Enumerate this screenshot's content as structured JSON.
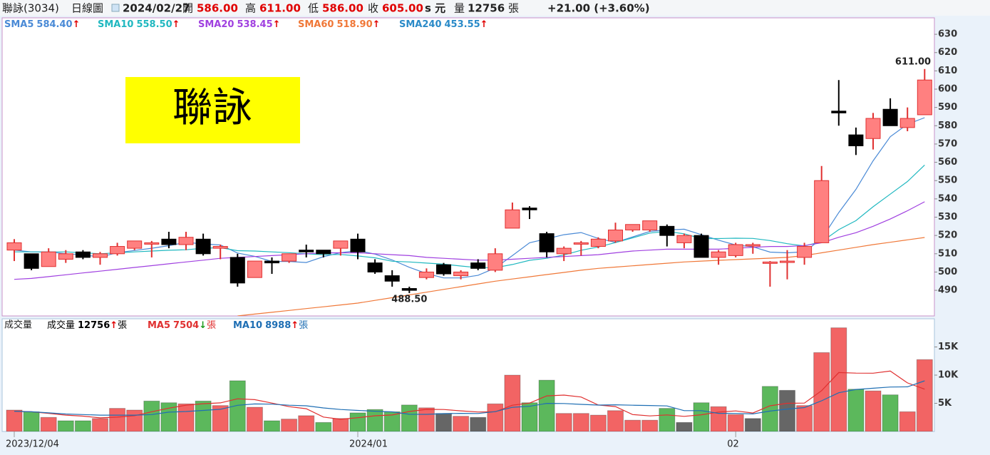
{
  "header": {
    "name": "聯詠(3034)",
    "period": "日線圖",
    "date": "2024/02/27",
    "fields": [
      {
        "label": "開",
        "value": "586.00"
      },
      {
        "label": "高",
        "value": "611.00"
      },
      {
        "label": "低",
        "value": "586.00"
      },
      {
        "label": "收",
        "value": "605.00"
      }
    ],
    "unit": "s 元",
    "volume_label": "量",
    "volume": "12756",
    "volume_unit": "張",
    "change": "+21.00 (+3.60%)"
  },
  "chart_data": [
    {
      "type": "candlestick",
      "title": "聯詠",
      "title_background": "#ffff00",
      "open": [
        512,
        510,
        503,
        507,
        511,
        508,
        510,
        513,
        516,
        518,
        515,
        518,
        513,
        508,
        497,
        506,
        506,
        512,
        512,
        513,
        518,
        505,
        498,
        491,
        497,
        504,
        498,
        505,
        501,
        524,
        535,
        521,
        510,
        516,
        514,
        517,
        523,
        523,
        525,
        516,
        520,
        508,
        509,
        515,
        505,
        506,
        508,
        516,
        588,
        575,
        573,
        589,
        579,
        586
      ],
      "high": [
        518,
        510,
        513,
        512,
        512,
        511,
        516,
        517,
        517,
        522,
        522,
        521,
        515,
        510,
        506,
        508,
        510,
        515,
        512,
        517,
        521,
        507,
        501,
        492,
        502,
        505,
        501,
        507,
        513,
        538,
        536,
        522,
        514,
        517,
        519,
        527,
        526,
        528,
        526,
        521,
        521,
        512,
        516,
        516,
        506,
        512,
        516,
        558,
        605,
        579,
        587,
        595,
        590,
        611
      ],
      "low": [
        506,
        501,
        503,
        505,
        507,
        504,
        509,
        512,
        508,
        513,
        512,
        509,
        507,
        492,
        497,
        499,
        505,
        508,
        508,
        509,
        507,
        499,
        492,
        488.5,
        496,
        498,
        496,
        501,
        500,
        524,
        529,
        508,
        506,
        509,
        513,
        516,
        522,
        522,
        514,
        513,
        508,
        504,
        508,
        510,
        492,
        496,
        504,
        516,
        580,
        564,
        567,
        580,
        577,
        586
      ],
      "close": [
        516,
        502,
        511,
        510,
        508,
        510,
        514,
        517,
        516,
        515,
        519,
        510,
        514,
        494,
        506,
        505,
        510,
        511,
        510,
        517,
        511,
        500,
        495,
        490,
        500,
        499,
        500,
        502,
        510,
        534,
        534,
        511,
        513,
        516,
        518,
        523,
        526,
        528,
        520,
        520,
        508,
        511,
        515,
        515,
        505.5,
        506,
        514,
        550,
        587,
        569,
        584,
        580,
        584,
        605
      ],
      "up_color": "#ff8080",
      "up_edge": "#e03030",
      "down_color": "#000000",
      "ylim": [
        476,
        639
      ],
      "yticks": [
        490,
        500,
        510,
        520,
        530,
        540,
        550,
        560,
        570,
        580,
        590,
        600,
        610,
        620,
        630
      ],
      "high_label": "611.00",
      "low_label": "488.50",
      "series": [
        {
          "name": "SMA5",
          "color": "#4a8ad6",
          "legend_value": "584.40",
          "trend": "↑",
          "trend_color": "#e00000",
          "values": [
            512,
            511,
            511,
            510,
            509.4,
            508.2,
            510.6,
            511.8,
            513,
            514.4,
            516.2,
            515.4,
            514.8,
            510.4,
            508.6,
            505.8,
            505.8,
            505.2,
            508.4,
            510.6,
            511.8,
            509.8,
            506.6,
            502.6,
            499.2,
            496.8,
            496.8,
            498.2,
            502.2,
            509,
            516,
            518.2,
            520.4,
            521.6,
            518.4,
            516.2,
            519.2,
            522.2,
            523,
            523.4,
            520.4,
            517.4,
            514.8,
            513.8,
            510.9,
            510.5,
            511.1,
            518.1,
            532.5,
            545.2,
            560.8,
            574,
            580.8,
            584.4
          ]
        },
        {
          "name": "SMA10",
          "color": "#20b8c0",
          "legend_value": "558.50",
          "trend": "↑",
          "trend_color": "#e00000",
          "values": [
            511,
            511,
            511,
            511,
            510.5,
            510,
            510.5,
            511,
            511.5,
            511.9,
            512.2,
            513,
            513.3,
            511.7,
            511.5,
            511,
            510.6,
            510,
            509.4,
            509.6,
            508.8,
            507.8,
            505.9,
            505.5,
            504.9,
            504.3,
            503.3,
            502.4,
            502.4,
            504.1,
            506.4,
            507.5,
            509.3,
            511.9,
            513.7,
            516.1,
            518.7,
            521.3,
            522.3,
            520.9,
            518.3,
            518.3,
            518.5,
            518.4,
            517.2,
            515.5,
            514.3,
            516.5,
            523.2,
            528.1,
            535.7,
            542.6,
            549.5,
            558.5
          ]
        },
        {
          "name": "SMA20",
          "color": "#a040e0",
          "legend_value": "538.45",
          "trend": "↑",
          "trend_color": "#e00000",
          "values": [
            496,
            496.5,
            497.5,
            498.5,
            499.5,
            500.5,
            501.5,
            502.5,
            503.5,
            504.5,
            505.5,
            506.5,
            507.5,
            508,
            508.5,
            509,
            509.5,
            510,
            510.5,
            510.5,
            510.5,
            510,
            509.5,
            509,
            508,
            507.5,
            507,
            506.5,
            506.5,
            507,
            507.5,
            508,
            508.5,
            509,
            509.5,
            510.5,
            511.5,
            512,
            512.5,
            512.5,
            512.5,
            512.5,
            513,
            513.5,
            514,
            514,
            514.5,
            516,
            519,
            521.5,
            525,
            529,
            533.5,
            538.45
          ]
        },
        {
          "name": "SMA60",
          "color": "#f07838",
          "legend_value": "518.90",
          "trend": "↑",
          "trend_color": "#e00000",
          "values": [
            null,
            null,
            null,
            null,
            null,
            null,
            null,
            null,
            null,
            null,
            null,
            null,
            null,
            476,
            477,
            478,
            479,
            480,
            481,
            482,
            483,
            484.5,
            486,
            487.5,
            489,
            490.5,
            492,
            493.5,
            495,
            496.2,
            497.4,
            498.6,
            499.8,
            501,
            502,
            502.7,
            503.4,
            504.1,
            504.8,
            505.5,
            506,
            506.4,
            506.8,
            507.2,
            507.6,
            508,
            509,
            510.5,
            512,
            513.5,
            515,
            516.3,
            517.6,
            518.9
          ]
        },
        {
          "name": "SMA240",
          "color": "#2a8ac8",
          "legend_value": "453.55",
          "trend": "↑",
          "trend_color": "#e00000"
        }
      ]
    },
    {
      "type": "bar",
      "title": "成交量",
      "categories": [
        "2023/12/04",
        null,
        null,
        null,
        null,
        null,
        null,
        null,
        null,
        null,
        null,
        null,
        null,
        null,
        null,
        null,
        null,
        null,
        null,
        null,
        "2024/01",
        null,
        null,
        null,
        null,
        null,
        null,
        null,
        null,
        null,
        null,
        null,
        null,
        null,
        null,
        null,
        null,
        null,
        null,
        null,
        null,
        null,
        "02",
        null,
        null,
        null,
        null,
        null,
        null,
        null,
        null,
        null,
        null,
        null
      ],
      "values": [
        3800,
        3500,
        2500,
        1900,
        1900,
        2300,
        4100,
        3800,
        5400,
        5100,
        4900,
        5400,
        4600,
        9000,
        4300,
        1900,
        2200,
        2800,
        1600,
        2300,
        3300,
        3900,
        3500,
        4700,
        4200,
        3200,
        2700,
        2500,
        4900,
        10000,
        5100,
        9100,
        3200,
        3200,
        2900,
        3700,
        2000,
        2000,
        4100,
        1600,
        5100,
        4400,
        3000,
        2300,
        8000,
        7300,
        4600,
        14000,
        18400,
        7500,
        7200,
        6500,
        3500,
        12756
      ],
      "colors": [
        "#f26464",
        "#5cb85c",
        "#f26464",
        "#5cb85c",
        "#5cb85c",
        "#f26464",
        "#f26464",
        "#f26464",
        "#5cb85c",
        "#5cb85c",
        "#f26464",
        "#5cb85c",
        "#f26464",
        "#5cb85c",
        "#f26464",
        "#5cb85c",
        "#f26464",
        "#f26464",
        "#5cb85c",
        "#f26464",
        "#5cb85c",
        "#5cb85c",
        "#5cb85c",
        "#5cb85c",
        "#f26464",
        "#666666",
        "#f26464",
        "#666666",
        "#f26464",
        "#f26464",
        "#5cb85c",
        "#5cb85c",
        "#f26464",
        "#f26464",
        "#f26464",
        "#f26464",
        "#f26464",
        "#f26464",
        "#5cb85c",
        "#666666",
        "#5cb85c",
        "#f26464",
        "#f26464",
        "#666666",
        "#5cb85c",
        "#666666",
        "#f26464",
        "#f26464",
        "#f26464",
        "#5cb85c",
        "#f26464",
        "#5cb85c",
        "#f26464",
        "#f26464"
      ],
      "ylim": [
        0,
        20000
      ],
      "yticks": [
        {
          "value": 5000,
          "label": "5K"
        },
        {
          "value": 10000,
          "label": "10K"
        },
        {
          "value": 15000,
          "label": "15K"
        }
      ],
      "legend": {
        "name": "成交量",
        "color": "#000000",
        "value": "12756",
        "trend": "↑",
        "trend_color": "#e00000",
        "unit": "張"
      },
      "series": [
        {
          "name": "MA5",
          "color": "#e03030",
          "legend_value": "7504",
          "trend": "↓",
          "trend_color": "#1a9a1a",
          "unit": "張",
          "values": [
            3600,
            3500,
            3200,
            2900,
            2720,
            2420,
            2540,
            2800,
            3500,
            4140,
            4660,
            4920,
            5080,
            5800,
            5640,
            5040,
            4400,
            4040,
            2560,
            2160,
            2440,
            2780,
            2920,
            3540,
            3920,
            3900,
            3660,
            3460,
            3500,
            4660,
            5040,
            6320,
            6460,
            6120,
            4700,
            4420,
            3000,
            2760,
            2940,
            2680,
            2960,
            3440,
            3640,
            3280,
            4560,
            5000,
            5040,
            7240,
            10460,
            10360,
            10340,
            10720,
            8620,
            7504
          ]
        },
        {
          "name": "MA10",
          "color": "#1f6fb4",
          "legend_value": "8988",
          "trend": "↑",
          "trend_color": "#e00000",
          "unit": "張",
          "values": [
            3600,
            3500,
            3300,
            3100,
            3000,
            2900,
            2900,
            2900,
            3000,
            3430,
            3540,
            3730,
            3940,
            4650,
            4890,
            4850,
            4660,
            4560,
            4180,
            3900,
            3740,
            3590,
            3480,
            3050,
            3040,
            3170,
            3220,
            3190,
            3520,
            4290,
            4470,
            4990,
            4960,
            4810,
            4680,
            4730,
            4660,
            4610,
            4530,
            3690,
            3690,
            3220,
            3200,
            3110,
            3620,
            3980,
            4240,
            5440,
            6870,
            7460,
            7670,
            7880,
            7930,
            8988
          ]
        }
      ]
    }
  ]
}
